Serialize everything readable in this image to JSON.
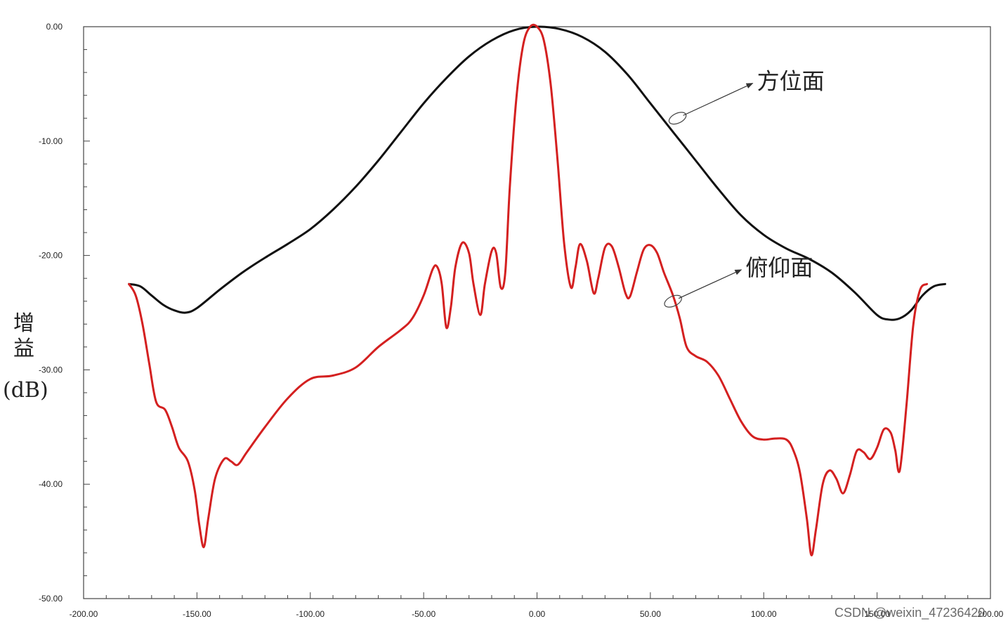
{
  "chart_data": {
    "type": "line",
    "title": "",
    "ylabel_lines": [
      "增",
      "益",
      "(dB)"
    ],
    "xlim": [
      -200,
      200
    ],
    "ylim": [
      -50,
      0
    ],
    "x_ticks": [
      "-200.00",
      "-150.00",
      "-100.00",
      "-50.00",
      "0.00",
      "50.00",
      "100.00",
      "150.00",
      "200.00"
    ],
    "x_tick_values": [
      -200,
      -150,
      -100,
      -50,
      0,
      50,
      100,
      150,
      200
    ],
    "y_ticks": [
      "0.00",
      "-10.00",
      "-20.00",
      "-30.00",
      "-40.00",
      "-50.00"
    ],
    "y_tick_values": [
      0,
      -10,
      -20,
      -30,
      -40,
      -50
    ],
    "series": [
      {
        "name": "方位面",
        "color": "#111111",
        "points": [
          [
            -180,
            -22.5
          ],
          [
            -175,
            -22.7
          ],
          [
            -170,
            -23.5
          ],
          [
            -165,
            -24.3
          ],
          [
            -160,
            -24.8
          ],
          [
            -155,
            -25
          ],
          [
            -150,
            -24.6
          ],
          [
            -140,
            -23
          ],
          [
            -130,
            -21.5
          ],
          [
            -120,
            -20.2
          ],
          [
            -110,
            -19
          ],
          [
            -100,
            -17.7
          ],
          [
            -90,
            -16
          ],
          [
            -80,
            -14
          ],
          [
            -70,
            -11.7
          ],
          [
            -60,
            -9.2
          ],
          [
            -50,
            -6.7
          ],
          [
            -40,
            -4.5
          ],
          [
            -30,
            -2.6
          ],
          [
            -20,
            -1.2
          ],
          [
            -10,
            -0.3
          ],
          [
            0,
            0
          ],
          [
            10,
            -0.2
          ],
          [
            20,
            -0.9
          ],
          [
            30,
            -2.2
          ],
          [
            40,
            -4.2
          ],
          [
            50,
            -6.7
          ],
          [
            60,
            -9.2
          ],
          [
            70,
            -11.7
          ],
          [
            80,
            -14.2
          ],
          [
            90,
            -16.5
          ],
          [
            100,
            -18.2
          ],
          [
            110,
            -19.4
          ],
          [
            120,
            -20.3
          ],
          [
            130,
            -21.5
          ],
          [
            140,
            -23.2
          ],
          [
            150,
            -25.2
          ],
          [
            155,
            -25.6
          ],
          [
            160,
            -25.5
          ],
          [
            165,
            -24.8
          ],
          [
            170,
            -23.5
          ],
          [
            175,
            -22.7
          ],
          [
            180,
            -22.5
          ]
        ]
      },
      {
        "name": "俯仰面",
        "color": "#d42020",
        "points": [
          [
            -180,
            -22.5
          ],
          [
            -177,
            -23.5
          ],
          [
            -174,
            -26
          ],
          [
            -171,
            -29.5
          ],
          [
            -168,
            -32.8
          ],
          [
            -164,
            -33.5
          ],
          [
            -161,
            -35
          ],
          [
            -158,
            -36.8
          ],
          [
            -154,
            -38
          ],
          [
            -151,
            -40.5
          ],
          [
            -149,
            -43.5
          ],
          [
            -147,
            -45.5
          ],
          [
            -145,
            -43
          ],
          [
            -142,
            -39.5
          ],
          [
            -138,
            -37.8
          ],
          [
            -135,
            -38
          ],
          [
            -132,
            -38.3
          ],
          [
            -128,
            -37.2
          ],
          [
            -120,
            -35
          ],
          [
            -110,
            -32.5
          ],
          [
            -100,
            -30.8
          ],
          [
            -90,
            -30.5
          ],
          [
            -80,
            -29.8
          ],
          [
            -70,
            -28
          ],
          [
            -60,
            -26.5
          ],
          [
            -55,
            -25.5
          ],
          [
            -50,
            -23.5
          ],
          [
            -46,
            -21.2
          ],
          [
            -44,
            -21
          ],
          [
            -42,
            -22.5
          ],
          [
            -40,
            -26.3
          ],
          [
            -38,
            -24.5
          ],
          [
            -36,
            -21
          ],
          [
            -33,
            -18.9
          ],
          [
            -30,
            -19.8
          ],
          [
            -28,
            -22.5
          ],
          [
            -25,
            -25.2
          ],
          [
            -23,
            -22.5
          ],
          [
            -20,
            -19.6
          ],
          [
            -18,
            -19.8
          ],
          [
            -16,
            -22.8
          ],
          [
            -14,
            -21.5
          ],
          [
            -12,
            -14
          ],
          [
            -9,
            -6
          ],
          [
            -6,
            -1.5
          ],
          [
            -3,
            0
          ],
          [
            0,
            0
          ],
          [
            3,
            -1.2
          ],
          [
            6,
            -5
          ],
          [
            9,
            -11.5
          ],
          [
            12,
            -19
          ],
          [
            15,
            -22.8
          ],
          [
            17,
            -21
          ],
          [
            19,
            -19
          ],
          [
            22,
            -20.5
          ],
          [
            25,
            -23.3
          ],
          [
            27,
            -22
          ],
          [
            30,
            -19.3
          ],
          [
            33,
            -19.2
          ],
          [
            36,
            -21
          ],
          [
            39,
            -23.3
          ],
          [
            41,
            -23.6
          ],
          [
            44,
            -21.5
          ],
          [
            47,
            -19.5
          ],
          [
            50,
            -19.1
          ],
          [
            53,
            -19.8
          ],
          [
            56,
            -21.5
          ],
          [
            60,
            -23.5
          ],
          [
            63,
            -25.5
          ],
          [
            66,
            -28
          ],
          [
            70,
            -28.8
          ],
          [
            75,
            -29.3
          ],
          [
            80,
            -30.5
          ],
          [
            85,
            -32.5
          ],
          [
            90,
            -34.5
          ],
          [
            95,
            -35.8
          ],
          [
            100,
            -36.1
          ],
          [
            105,
            -36
          ],
          [
            110,
            -36.1
          ],
          [
            113,
            -37
          ],
          [
            116,
            -39
          ],
          [
            119,
            -43
          ],
          [
            121,
            -46.2
          ],
          [
            123,
            -44
          ],
          [
            126,
            -40
          ],
          [
            129,
            -38.8
          ],
          [
            132,
            -39.5
          ],
          [
            135,
            -40.8
          ],
          [
            138,
            -39.2
          ],
          [
            141,
            -37.1
          ],
          [
            144,
            -37.2
          ],
          [
            147,
            -37.8
          ],
          [
            150,
            -36.8
          ],
          [
            153,
            -35.2
          ],
          [
            156,
            -35.5
          ],
          [
            158,
            -37
          ],
          [
            160,
            -38.8
          ],
          [
            163,
            -33
          ],
          [
            166,
            -26
          ],
          [
            169,
            -23
          ],
          [
            172,
            -22.5
          ]
        ]
      }
    ],
    "annotations": [
      {
        "text": "方位面",
        "target_x": 62,
        "target_y": -8,
        "label_x": 97,
        "label_y": -4.7
      },
      {
        "text": "俯仰面",
        "target_x": 60,
        "target_y": -24,
        "label_x": 92,
        "label_y": -21
      }
    ]
  },
  "watermark": "CSDN @weixin_47236420"
}
